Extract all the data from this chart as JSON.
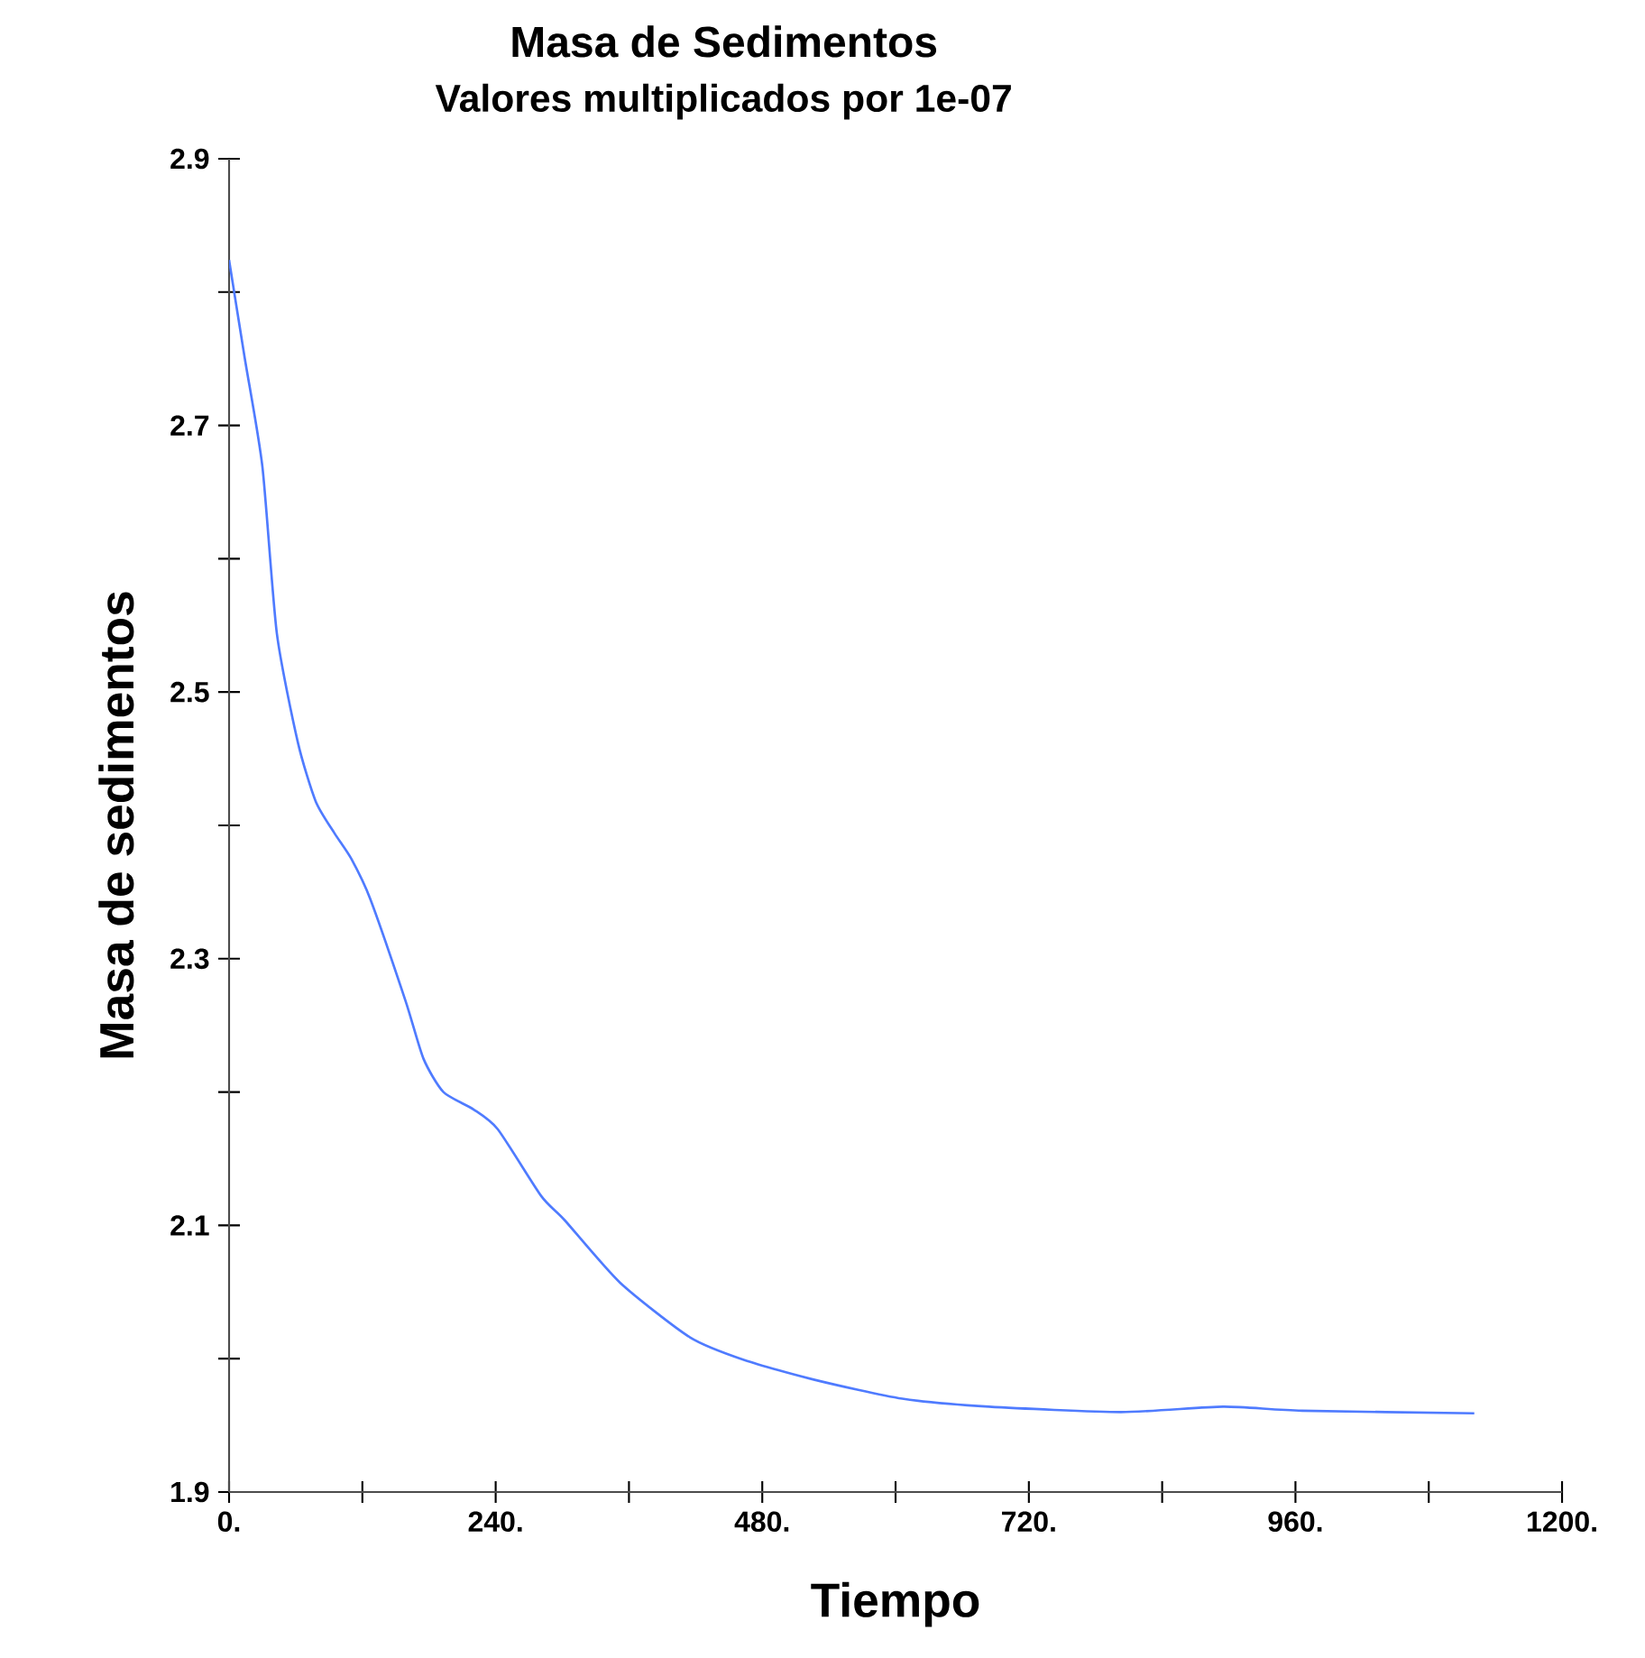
{
  "chart_data": {
    "type": "line",
    "title": "Masa de Sedimentos",
    "subtitle": "Valores multiplicados por 1e-07",
    "xlabel": "Tiempo",
    "ylabel": "Masa de sedimentos",
    "x": [
      0,
      14,
      30,
      43,
      62,
      78,
      95,
      110,
      127,
      159,
      175,
      193,
      220,
      242,
      281,
      302,
      352,
      415,
      464,
      528,
      606,
      684,
      803,
      895,
      966,
      1121
    ],
    "series": [
      {
        "color": "#4f7bff",
        "values": [
          2.824,
          2.751,
          2.669,
          2.544,
          2.462,
          2.418,
          2.394,
          2.375,
          2.345,
          2.268,
          2.225,
          2.2,
          2.187,
          2.172,
          2.122,
          2.104,
          2.057,
          2.016,
          1.999,
          1.984,
          1.97,
          1.964,
          1.96,
          1.964,
          1.961,
          1.959
        ]
      }
    ],
    "xlim": [
      0,
      1200
    ],
    "ylim": [
      1.9,
      2.9
    ],
    "xticks": [
      {
        "value": 0,
        "label": "0."
      },
      {
        "value": 120,
        "label": null
      },
      {
        "value": 240,
        "label": "240."
      },
      {
        "value": 360,
        "label": null
      },
      {
        "value": 480,
        "label": "480."
      },
      {
        "value": 600,
        "label": null
      },
      {
        "value": 720,
        "label": "720."
      },
      {
        "value": 840,
        "label": null
      },
      {
        "value": 960,
        "label": "960."
      },
      {
        "value": 1080,
        "label": null
      },
      {
        "value": 1200,
        "label": "1200."
      }
    ],
    "yticks": [
      1.9,
      {
        "value": 2.0,
        "label": null
      },
      2.1,
      {
        "value": 2.2,
        "label": null
      },
      2.3,
      {
        "value": 2.4,
        "label": null
      },
      2.5,
      {
        "value": 2.6,
        "label": null
      },
      2.7,
      {
        "value": 2.8,
        "label": null
      },
      2.9
    ],
    "marker": "none",
    "line_style": "solid"
  }
}
